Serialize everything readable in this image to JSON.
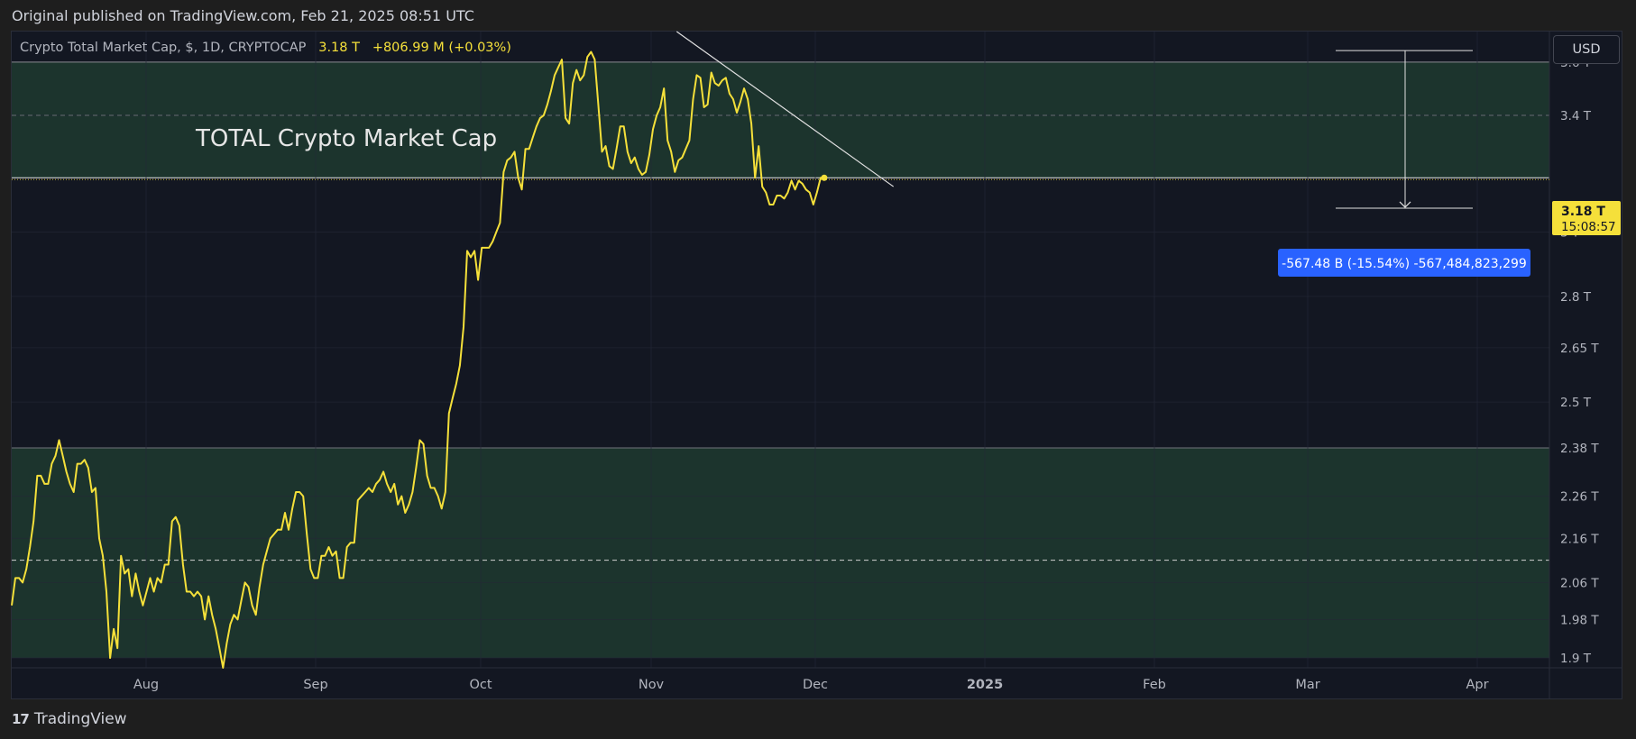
{
  "header": {
    "published": "Original published on TradingView.com, Feb 21, 2025 08:51 UTC"
  },
  "legend": {
    "symbol": "Crypto Total Market Cap, $, 1D, CRYPTOCAP",
    "price": "3.18 T",
    "change": "+806.99 M (+0.03%)"
  },
  "currency_button": "USD",
  "footer": {
    "brand": "TradingView",
    "logo_text": "17"
  },
  "colors": {
    "background": "#131722",
    "price_line": "#f5e03a",
    "zone_fill": "#1f3a2f",
    "measure_label": "#2962ff",
    "grid": "#242836"
  },
  "chart_data": {
    "type": "line",
    "title": "TOTAL Crypto Market Cap",
    "x_ticks": [
      "Aug",
      "Sep",
      "Oct",
      "Nov",
      "Dec",
      "2025",
      "Feb",
      "Mar",
      "Apr"
    ],
    "y_ticks": [
      "3.6 T",
      "3.4 T",
      "3 T",
      "2.8 T",
      "2.65 T",
      "2.5 T",
      "2.38 T",
      "2.26 T",
      "2.16 T",
      "2.06 T",
      "1.98 T",
      "1.9 T"
    ],
    "ylim": [
      1.88,
      3.72
    ],
    "y_scale": "log",
    "current_price_label": "3.18 T",
    "countdown_label": "15:08:57",
    "measure_label": "-567.48 B (-15.54%) -567,484,823,299",
    "zones": [
      {
        "top": 3.6,
        "bottom": 3.18,
        "mid": 3.4
      },
      {
        "top": 2.38,
        "bottom": 1.9,
        "mid": 2.11
      }
    ],
    "series": [
      {
        "values": [
          [
            0,
            2.01
          ],
          [
            2,
            2.07
          ],
          [
            4,
            2.07
          ],
          [
            6,
            2.06
          ],
          [
            8,
            2.09
          ],
          [
            10,
            2.14
          ],
          [
            12,
            2.2
          ],
          [
            14,
            2.31
          ],
          [
            16,
            2.31
          ],
          [
            18,
            2.29
          ],
          [
            20,
            2.29
          ],
          [
            22,
            2.34
          ],
          [
            24,
            2.36
          ],
          [
            26,
            2.4
          ],
          [
            28,
            2.36
          ],
          [
            30,
            2.32
          ],
          [
            32,
            2.29
          ],
          [
            34,
            2.27
          ],
          [
            36,
            2.34
          ],
          [
            38,
            2.34
          ],
          [
            40,
            2.35
          ],
          [
            42,
            2.33
          ],
          [
            44,
            2.27
          ],
          [
            46,
            2.28
          ],
          [
            48,
            2.16
          ],
          [
            50,
            2.12
          ],
          [
            52,
            2.04
          ],
          [
            54,
            1.9
          ],
          [
            56,
            1.96
          ],
          [
            58,
            1.92
          ],
          [
            60,
            2.12
          ],
          [
            62,
            2.08
          ],
          [
            64,
            2.09
          ],
          [
            66,
            2.03
          ],
          [
            68,
            2.08
          ],
          [
            70,
            2.04
          ],
          [
            72,
            2.01
          ],
          [
            74,
            2.04
          ],
          [
            76,
            2.07
          ],
          [
            78,
            2.04
          ],
          [
            80,
            2.07
          ],
          [
            82,
            2.06
          ],
          [
            84,
            2.1
          ],
          [
            86,
            2.1
          ],
          [
            88,
            2.2
          ],
          [
            90,
            2.21
          ],
          [
            92,
            2.19
          ],
          [
            94,
            2.1
          ],
          [
            96,
            2.04
          ],
          [
            98,
            2.04
          ],
          [
            100,
            2.03
          ],
          [
            102,
            2.04
          ],
          [
            104,
            2.03
          ],
          [
            106,
            1.98
          ],
          [
            108,
            2.03
          ],
          [
            110,
            1.99
          ],
          [
            112,
            1.96
          ],
          [
            114,
            1.92
          ],
          [
            116,
            1.88
          ],
          [
            118,
            1.93
          ],
          [
            120,
            1.97
          ],
          [
            122,
            1.99
          ],
          [
            124,
            1.98
          ],
          [
            126,
            2.02
          ],
          [
            128,
            2.06
          ],
          [
            130,
            2.05
          ],
          [
            132,
            2.01
          ],
          [
            134,
            1.99
          ],
          [
            136,
            2.05
          ],
          [
            138,
            2.1
          ],
          [
            140,
            2.13
          ],
          [
            142,
            2.16
          ],
          [
            144,
            2.17
          ],
          [
            146,
            2.18
          ],
          [
            148,
            2.18
          ],
          [
            150,
            2.22
          ],
          [
            152,
            2.18
          ],
          [
            154,
            2.23
          ],
          [
            156,
            2.27
          ],
          [
            158,
            2.27
          ],
          [
            160,
            2.26
          ],
          [
            162,
            2.17
          ],
          [
            164,
            2.09
          ],
          [
            166,
            2.07
          ],
          [
            168,
            2.07
          ],
          [
            170,
            2.12
          ],
          [
            172,
            2.12
          ],
          [
            174,
            2.14
          ],
          [
            176,
            2.12
          ],
          [
            178,
            2.13
          ],
          [
            180,
            2.07
          ],
          [
            182,
            2.07
          ],
          [
            184,
            2.14
          ],
          [
            186,
            2.15
          ],
          [
            188,
            2.15
          ],
          [
            190,
            2.25
          ],
          [
            192,
            2.26
          ],
          [
            194,
            2.27
          ],
          [
            196,
            2.28
          ],
          [
            198,
            2.27
          ],
          [
            200,
            2.29
          ],
          [
            202,
            2.3
          ],
          [
            204,
            2.32
          ],
          [
            206,
            2.29
          ],
          [
            208,
            2.27
          ],
          [
            210,
            2.29
          ],
          [
            212,
            2.24
          ],
          [
            214,
            2.26
          ],
          [
            216,
            2.22
          ],
          [
            218,
            2.24
          ],
          [
            220,
            2.27
          ],
          [
            222,
            2.33
          ],
          [
            224,
            2.4
          ],
          [
            226,
            2.39
          ],
          [
            228,
            2.31
          ],
          [
            230,
            2.28
          ],
          [
            232,
            2.28
          ],
          [
            234,
            2.26
          ],
          [
            236,
            2.23
          ],
          [
            238,
            2.27
          ],
          [
            240,
            2.47
          ],
          [
            242,
            2.51
          ],
          [
            244,
            2.55
          ],
          [
            246,
            2.6
          ],
          [
            248,
            2.71
          ],
          [
            250,
            2.94
          ],
          [
            252,
            2.92
          ],
          [
            254,
            2.94
          ],
          [
            256,
            2.85
          ],
          [
            258,
            2.95
          ],
          [
            260,
            2.95
          ],
          [
            262,
            2.95
          ],
          [
            264,
            2.97
          ],
          [
            266,
            3.0
          ],
          [
            268,
            3.03
          ],
          [
            270,
            3.2
          ],
          [
            272,
            3.24
          ],
          [
            274,
            3.25
          ],
          [
            276,
            3.27
          ],
          [
            278,
            3.18
          ],
          [
            280,
            3.14
          ],
          [
            282,
            3.28
          ],
          [
            284,
            3.28
          ],
          [
            286,
            3.32
          ],
          [
            288,
            3.36
          ],
          [
            290,
            3.39
          ],
          [
            292,
            3.4
          ],
          [
            294,
            3.44
          ],
          [
            296,
            3.49
          ],
          [
            298,
            3.55
          ],
          [
            300,
            3.58
          ],
          [
            302,
            3.61
          ],
          [
            304,
            3.39
          ],
          [
            306,
            3.37
          ],
          [
            308,
            3.52
          ],
          [
            310,
            3.57
          ],
          [
            312,
            3.53
          ],
          [
            314,
            3.55
          ],
          [
            316,
            3.62
          ],
          [
            318,
            3.64
          ],
          [
            320,
            3.61
          ],
          [
            322,
            3.44
          ],
          [
            324,
            3.27
          ],
          [
            326,
            3.29
          ],
          [
            328,
            3.22
          ],
          [
            330,
            3.21
          ],
          [
            332,
            3.28
          ],
          [
            334,
            3.36
          ],
          [
            336,
            3.36
          ],
          [
            338,
            3.27
          ],
          [
            340,
            3.23
          ],
          [
            342,
            3.25
          ],
          [
            344,
            3.21
          ],
          [
            346,
            3.19
          ],
          [
            348,
            3.2
          ],
          [
            350,
            3.26
          ],
          [
            352,
            3.35
          ],
          [
            354,
            3.4
          ],
          [
            356,
            3.43
          ],
          [
            358,
            3.5
          ],
          [
            360,
            3.31
          ],
          [
            362,
            3.27
          ],
          [
            364,
            3.2
          ],
          [
            366,
            3.24
          ],
          [
            368,
            3.25
          ],
          [
            370,
            3.28
          ],
          [
            372,
            3.31
          ],
          [
            374,
            3.46
          ],
          [
            376,
            3.55
          ],
          [
            378,
            3.54
          ],
          [
            380,
            3.43
          ],
          [
            382,
            3.44
          ],
          [
            384,
            3.56
          ],
          [
            386,
            3.52
          ],
          [
            388,
            3.51
          ],
          [
            390,
            3.53
          ],
          [
            392,
            3.54
          ],
          [
            394,
            3.48
          ],
          [
            396,
            3.46
          ],
          [
            398,
            3.41
          ],
          [
            400,
            3.45
          ],
          [
            402,
            3.5
          ],
          [
            404,
            3.46
          ],
          [
            406,
            3.37
          ],
          [
            408,
            3.18
          ],
          [
            410,
            3.29
          ],
          [
            412,
            3.15
          ],
          [
            414,
            3.13
          ],
          [
            416,
            3.09
          ],
          [
            418,
            3.09
          ],
          [
            420,
            3.12
          ],
          [
            422,
            3.12
          ],
          [
            424,
            3.11
          ],
          [
            426,
            3.13
          ],
          [
            428,
            3.17
          ],
          [
            430,
            3.14
          ],
          [
            432,
            3.17
          ],
          [
            434,
            3.16
          ],
          [
            436,
            3.14
          ],
          [
            438,
            3.13
          ],
          [
            440,
            3.09
          ],
          [
            442,
            3.13
          ],
          [
            444,
            3.18
          ],
          [
            446,
            3.18
          ]
        ]
      }
    ],
    "annotations": {
      "trendline": [
        [
          365,
          3.72
        ],
        [
          484,
          3.15
        ]
      ],
      "measure_from": 3.645,
      "measure_to": 3.078
    }
  }
}
